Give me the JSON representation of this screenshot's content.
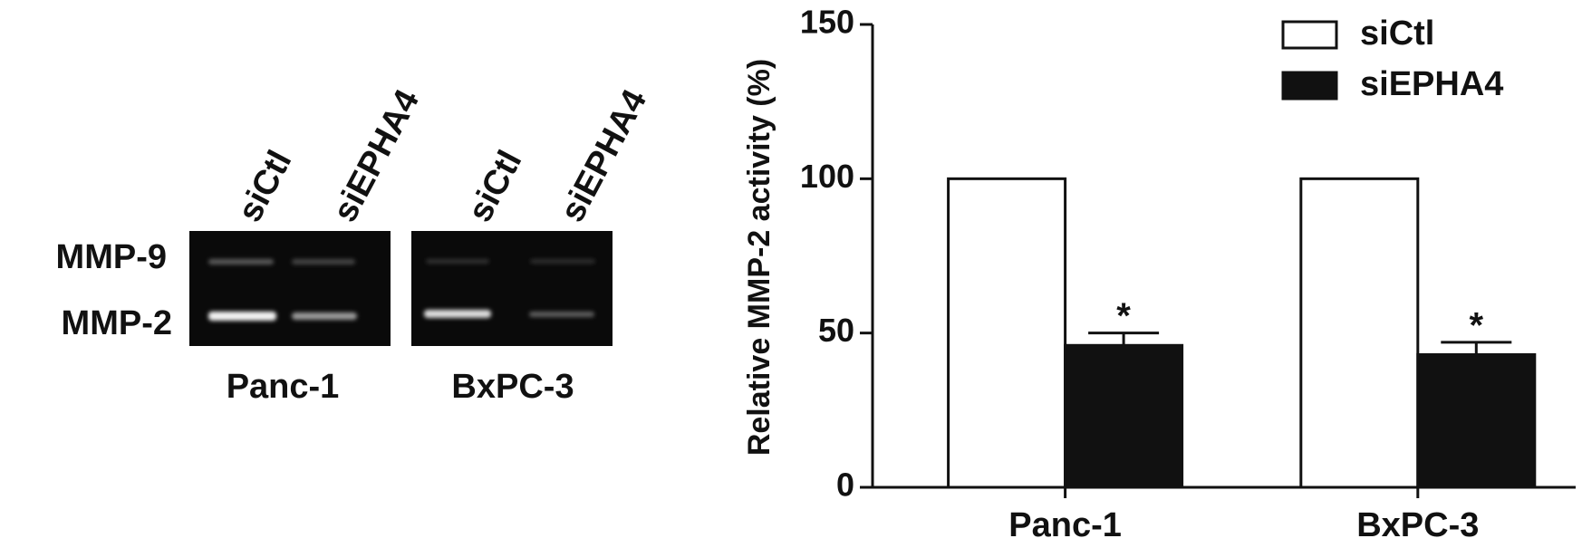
{
  "chart_data": {
    "type": "bar",
    "ylabel": "Relative MMP-2 activity (%)",
    "categories": [
      "Panc-1",
      "BxPC-3"
    ],
    "series": [
      {
        "name": "siCtl",
        "color": "#ffffff",
        "values": [
          100,
          100
        ]
      },
      {
        "name": "siEPHA4",
        "color": "#111111",
        "values": [
          46,
          43
        ],
        "errors": [
          4,
          4
        ]
      }
    ],
    "annotations": [
      "*",
      "*"
    ],
    "ylim": [
      0,
      150
    ],
    "yticks": [
      0,
      50,
      100,
      150
    ],
    "legend": "upper right"
  },
  "gel": {
    "lanes": [
      "siCtl",
      "siEPHA4",
      "siCtl",
      "siEPHA4"
    ],
    "bands": [
      "MMP-9",
      "MMP-2"
    ],
    "panels": [
      "Panc-1",
      "BxPC-3"
    ]
  }
}
